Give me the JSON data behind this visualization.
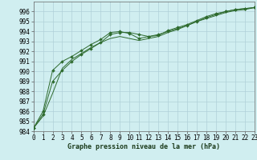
{
  "title": "Graphe pression niveau de la mer (hPa)",
  "bg_color": "#d0eef0",
  "plot_bg_color": "#d0eef0",
  "grid_color": "#b0d0d8",
  "line_color": "#2d6a2d",
  "xlim": [
    0,
    23
  ],
  "ylim": [
    984,
    997
  ],
  "xticks": [
    0,
    1,
    2,
    3,
    4,
    5,
    6,
    7,
    8,
    9,
    10,
    11,
    12,
    13,
    14,
    15,
    16,
    17,
    18,
    19,
    20,
    21,
    22,
    23
  ],
  "yticks": [
    984,
    985,
    986,
    987,
    988,
    989,
    990,
    991,
    992,
    993,
    994,
    995,
    996
  ],
  "series1_x": [
    0,
    1,
    2,
    3,
    4,
    5,
    6,
    7,
    8,
    9,
    10,
    11,
    12,
    13,
    14,
    15,
    16,
    17,
    18,
    19,
    20,
    21,
    22,
    23
  ],
  "series1_y": [
    984.3,
    985.7,
    989.0,
    990.1,
    991.0,
    991.7,
    992.3,
    992.9,
    993.7,
    993.9,
    993.9,
    993.7,
    993.5,
    993.6,
    994.1,
    994.4,
    994.7,
    995.1,
    995.5,
    995.8,
    996.0,
    996.2,
    996.3,
    996.4
  ],
  "series2_x": [
    0,
    1,
    2,
    3,
    4,
    5,
    6,
    7,
    8,
    9,
    10,
    11,
    12,
    13,
    14,
    15,
    16,
    17,
    18,
    19,
    20,
    21,
    22,
    23
  ],
  "series2_y": [
    984.3,
    986.0,
    990.1,
    991.0,
    991.5,
    992.1,
    992.7,
    993.2,
    993.9,
    994.0,
    993.8,
    993.3,
    993.5,
    993.7,
    994.0,
    994.3,
    994.6,
    995.0,
    995.4,
    995.7,
    996.0,
    996.2,
    996.3,
    996.4
  ],
  "series3_x": [
    0,
    1,
    2,
    3,
    4,
    5,
    6,
    7,
    8,
    9,
    10,
    11,
    12,
    13,
    14,
    15,
    16,
    17,
    18,
    19,
    20,
    21,
    22,
    23
  ],
  "series3_y": [
    984.3,
    985.5,
    987.8,
    990.3,
    991.2,
    991.8,
    992.4,
    992.9,
    993.3,
    993.5,
    993.3,
    993.1,
    993.3,
    993.5,
    993.9,
    994.2,
    994.6,
    995.0,
    995.3,
    995.6,
    995.9,
    996.1,
    996.2,
    996.4
  ],
  "ylabel_fontsize": 5.5,
  "tick_fontsize": 5.5,
  "xlabel_fontsize": 6.0
}
